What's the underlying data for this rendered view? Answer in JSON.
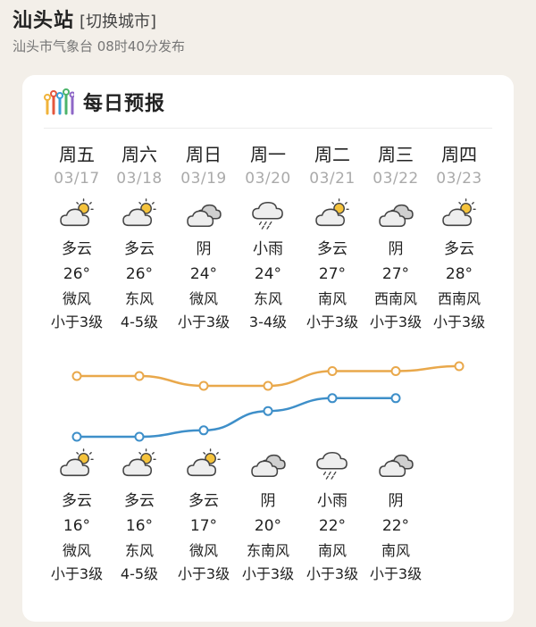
{
  "header": {
    "station": "汕头站",
    "switch_label": "[切换城市]",
    "source": "汕头市气象台 08时40分发布"
  },
  "card": {
    "title": "每日预报",
    "title_icon": "bar-chart-icon"
  },
  "days": [
    {
      "weekday": "周五",
      "date": "03/17",
      "day": {
        "icon": "partly-cloudy-icon",
        "cond": "多云",
        "temp": "26°",
        "wind_dir": "微风",
        "wind_level": "小于3级"
      },
      "night": {
        "icon": "partly-cloudy-icon",
        "cond": "多云",
        "temp": "16°",
        "wind_dir": "微风",
        "wind_level": "小于3级"
      }
    },
    {
      "weekday": "周六",
      "date": "03/18",
      "day": {
        "icon": "partly-cloudy-icon",
        "cond": "多云",
        "temp": "26°",
        "wind_dir": "东风",
        "wind_level": "4-5级"
      },
      "night": {
        "icon": "partly-cloudy-icon",
        "cond": "多云",
        "temp": "16°",
        "wind_dir": "东风",
        "wind_level": "4-5级"
      }
    },
    {
      "weekday": "周日",
      "date": "03/19",
      "day": {
        "icon": "overcast-icon",
        "cond": "阴",
        "temp": "24°",
        "wind_dir": "微风",
        "wind_level": "小于3级"
      },
      "night": {
        "icon": "partly-cloudy-icon",
        "cond": "多云",
        "temp": "17°",
        "wind_dir": "微风",
        "wind_level": "小于3级"
      }
    },
    {
      "weekday": "周一",
      "date": "03/20",
      "day": {
        "icon": "light-rain-icon",
        "cond": "小雨",
        "temp": "24°",
        "wind_dir": "东风",
        "wind_level": "3-4级"
      },
      "night": {
        "icon": "overcast-icon",
        "cond": "阴",
        "temp": "20°",
        "wind_dir": "东南风",
        "wind_level": "小于3级"
      }
    },
    {
      "weekday": "周二",
      "date": "03/21",
      "day": {
        "icon": "partly-cloudy-icon",
        "cond": "多云",
        "temp": "27°",
        "wind_dir": "南风",
        "wind_level": "小于3级"
      },
      "night": {
        "icon": "light-rain-icon",
        "cond": "小雨",
        "temp": "22°",
        "wind_dir": "南风",
        "wind_level": "小于3级"
      }
    },
    {
      "weekday": "周三",
      "date": "03/22",
      "day": {
        "icon": "overcast-icon",
        "cond": "阴",
        "temp": "27°",
        "wind_dir": "西南风",
        "wind_level": "小于3级"
      },
      "night": {
        "icon": "overcast-icon",
        "cond": "阴",
        "temp": "22°",
        "wind_dir": "南风",
        "wind_level": "小于3级"
      }
    },
    {
      "weekday": "周四",
      "date": "03/23",
      "day": {
        "icon": "partly-cloudy-icon",
        "cond": "多云",
        "temp": "28°",
        "wind_dir": "西南风",
        "wind_level": "小于3级"
      },
      "night": null
    }
  ],
  "trend": {
    "high": [
      26,
      26,
      24,
      24,
      27,
      27,
      28
    ],
    "low": [
      16,
      16,
      17,
      20,
      22,
      22,
      null
    ],
    "high_color": "#e9a84b",
    "low_color": "#3e8fc9"
  },
  "colors": {
    "background": "#f3efe9",
    "card": "#ffffff",
    "date_text": "#aaaaaa",
    "sun": "#f5c33b",
    "cloud_fill": "#eeeeee",
    "cloud_dark": "#cfcfcf",
    "outline": "#444444"
  }
}
